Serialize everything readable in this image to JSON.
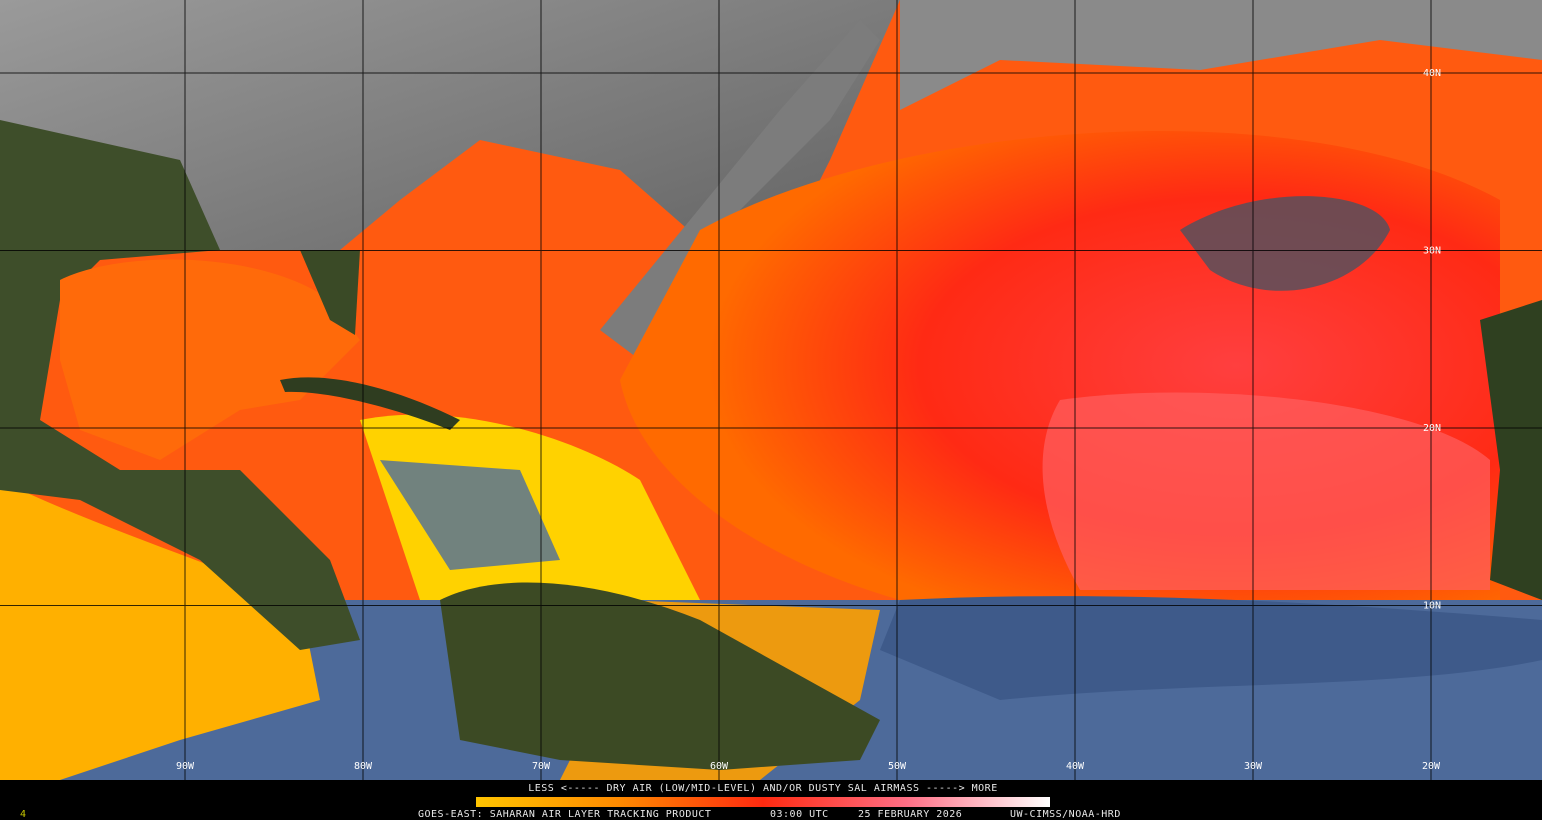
{
  "legend_caption": "LESS <----- DRY AIR (LOW/MID-LEVEL) AND/OR DUSTY SAL AIRMASS -----> MORE",
  "footer": {
    "product": "GOES-EAST: SAHARAN AIR LAYER TRACKING PRODUCT",
    "time": "03:00 UTC",
    "date": "25 FEBRUARY 2026",
    "credit": "UW-CIMSS/NOAA-HRD"
  },
  "frame_number": "4",
  "longitude_labels": [
    "90W",
    "80W",
    "70W",
    "60W",
    "50W",
    "40W",
    "30W",
    "20W"
  ],
  "latitude_labels": [
    "40N",
    "30N",
    "20N",
    "10N"
  ]
}
